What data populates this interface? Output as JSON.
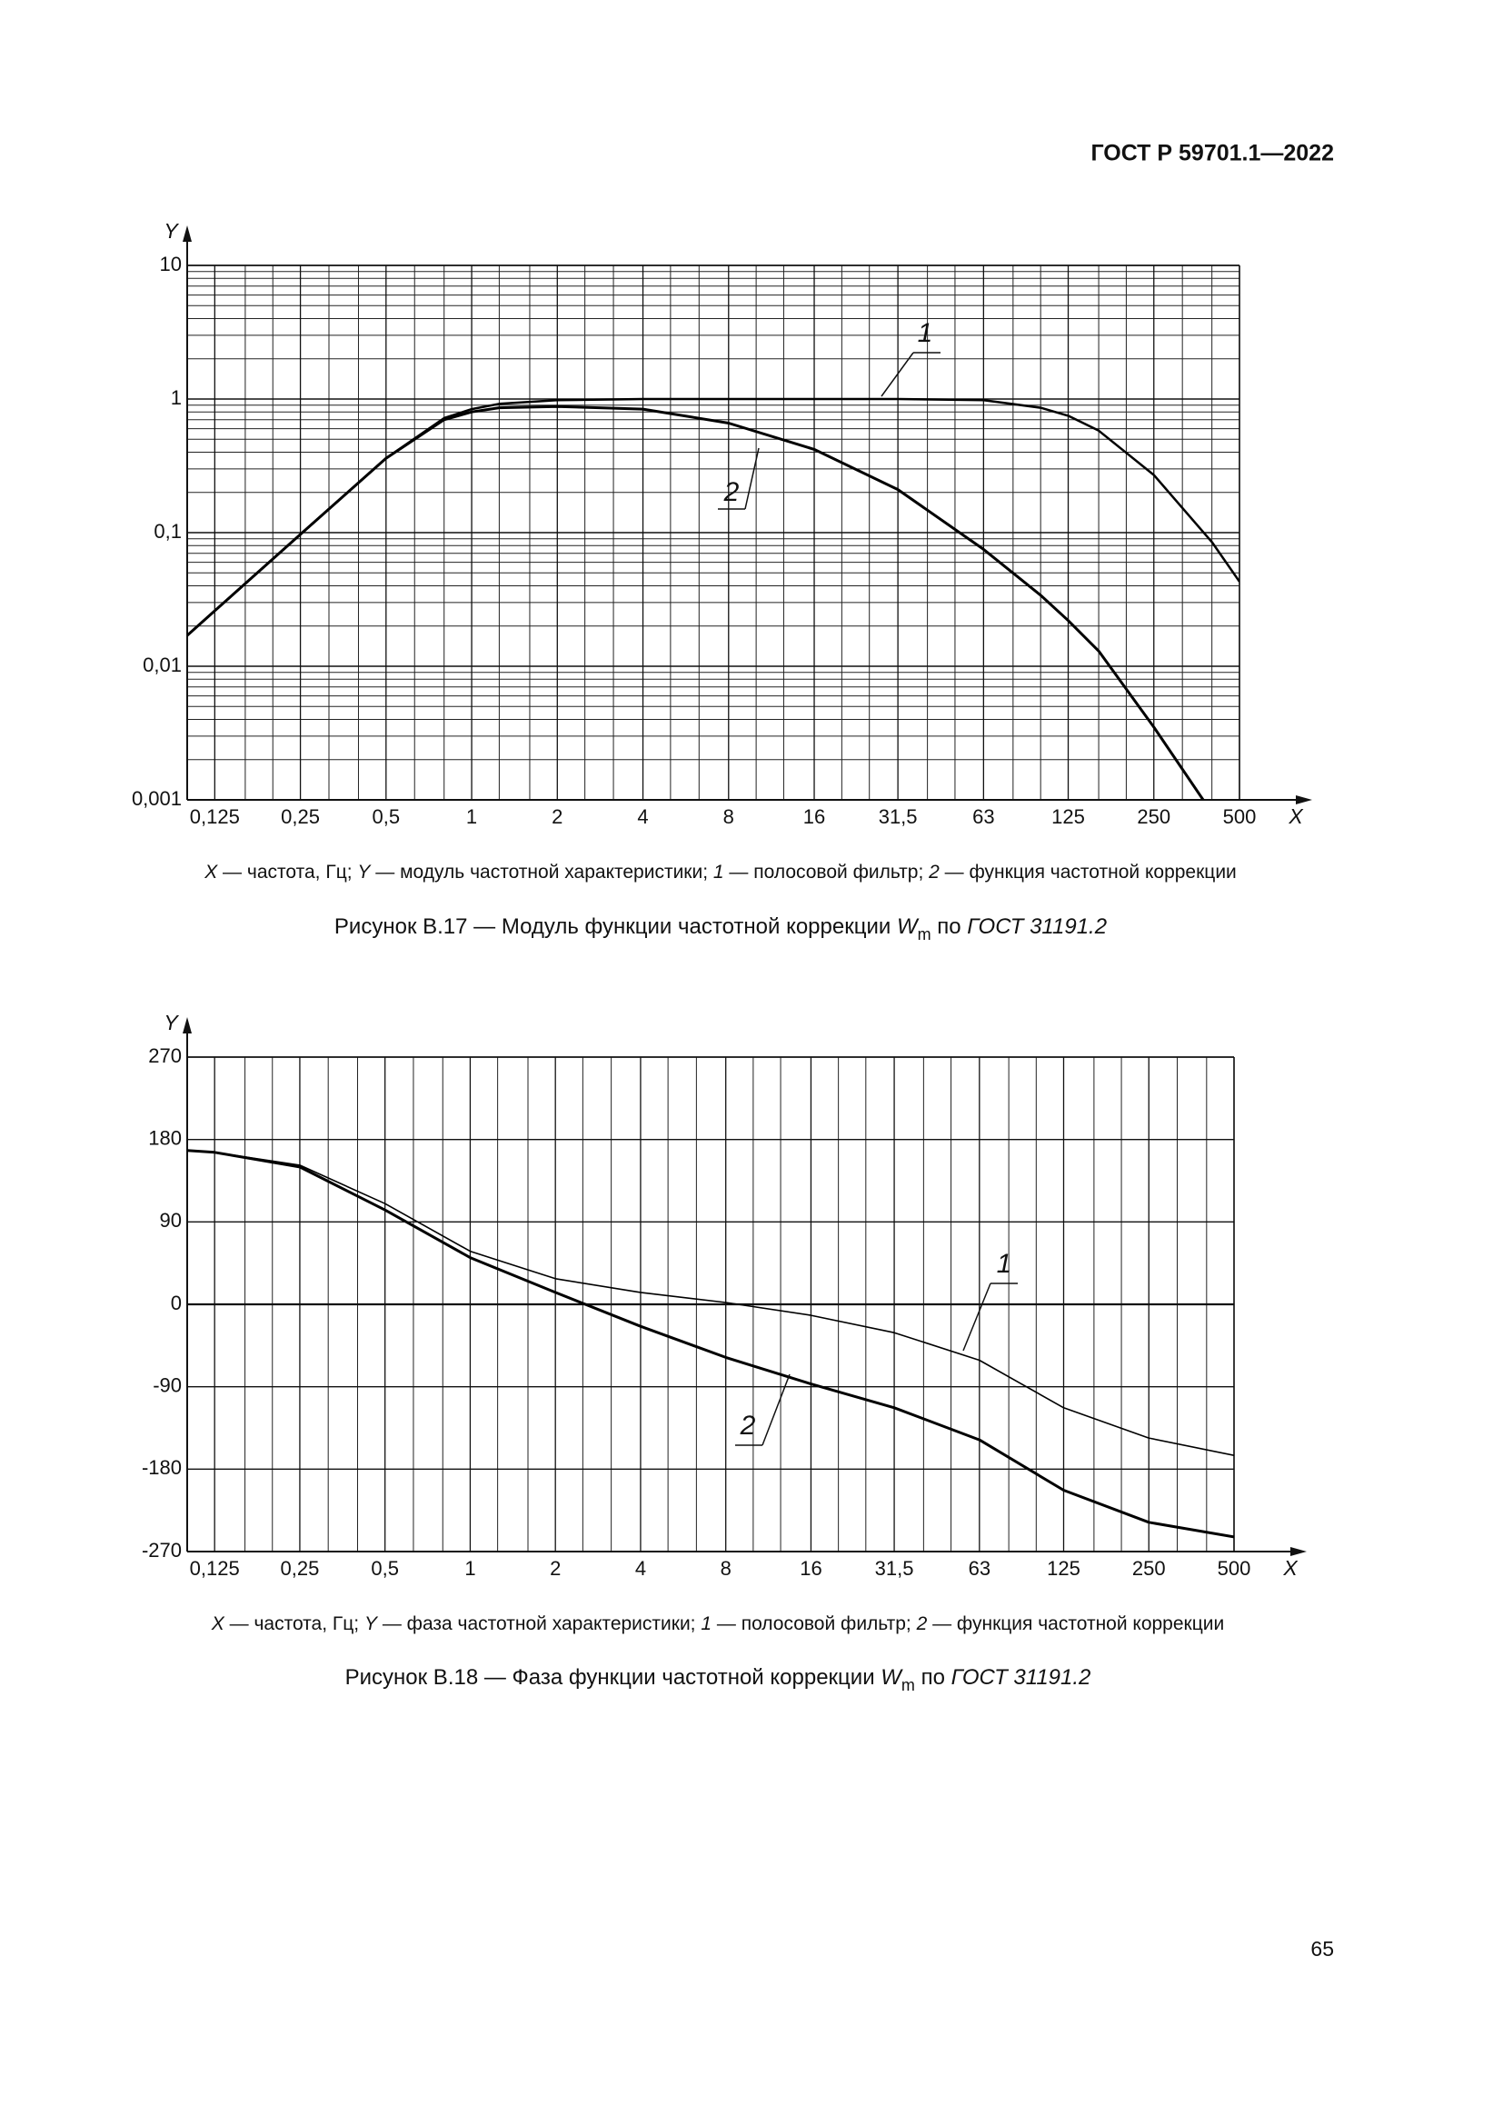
{
  "header": "ГОСТ Р 59701.1—2022",
  "page_number": "65",
  "chart_data": [
    {
      "type": "line",
      "xlabel": "X",
      "ylabel": "Y",
      "xscale": "log",
      "yscale": "log",
      "xlim": [
        0.1,
        500
      ],
      "ylim": [
        0.001,
        10
      ],
      "xticks": [
        {
          "value": 0.125,
          "label": "0,125"
        },
        {
          "value": 0.25,
          "label": "0,25"
        },
        {
          "value": 0.5,
          "label": "0,5"
        },
        1,
        2,
        4,
        8,
        16,
        {
          "value": 31.5,
          "label": "31,5"
        },
        63,
        125,
        250,
        500
      ],
      "xminor": [
        0.16,
        0.2,
        0.315,
        0.4,
        0.63,
        0.8,
        1.25,
        1.6,
        2.5,
        3.15,
        5,
        6.3,
        10,
        12.5,
        20,
        25,
        40,
        50,
        80,
        100,
        160,
        200,
        315,
        400
      ],
      "yticks": [
        {
          "value": 0.001,
          "label": "0,001"
        },
        {
          "value": 0.01,
          "label": "0,01"
        },
        {
          "value": 0.1,
          "label": "0,1"
        },
        1,
        10
      ],
      "yminor": [
        0.002,
        0.003,
        0.004,
        0.005,
        0.006,
        0.007,
        0.008,
        0.009,
        0.02,
        0.03,
        0.04,
        0.05,
        0.06,
        0.07,
        0.08,
        0.09,
        0.2,
        0.3,
        0.4,
        0.5,
        0.6,
        0.7,
        0.8,
        0.9,
        2,
        3,
        4,
        5,
        6,
        7,
        8,
        9
      ],
      "grid": true,
      "x": [
        0.1,
        0.125,
        0.25,
        0.5,
        0.8,
        1,
        1.25,
        2,
        4,
        8,
        16,
        31.5,
        63,
        100,
        125,
        160,
        250,
        400,
        500
      ],
      "series": [
        {
          "name": "1",
          "color": "#000000",
          "width": 2.5,
          "values": [
            0.017,
            0.026,
            0.097,
            0.36,
            0.72,
            0.84,
            0.92,
            0.98,
            1.0,
            1.0,
            1.0,
            1.0,
            0.98,
            0.86,
            0.75,
            0.58,
            0.27,
            0.085,
            0.043
          ]
        },
        {
          "name": "2",
          "color": "#000000",
          "width": 3,
          "values": [
            0.017,
            0.026,
            0.097,
            0.36,
            0.7,
            0.8,
            0.86,
            0.88,
            0.84,
            0.66,
            0.42,
            0.21,
            0.075,
            0.034,
            0.022,
            0.013,
            0.0035,
            0.0008,
            null
          ]
        }
      ],
      "note": [
        {
          "text": "X",
          "italic": true
        },
        {
          "text": " — частота, Гц; "
        },
        {
          "text": "Y",
          "italic": true
        },
        {
          "text": " — модуль частотной характеристики; "
        },
        {
          "text": "1",
          "italic": true
        },
        {
          "text": " — полосовой фильтр; "
        },
        {
          "text": "2",
          "italic": true
        },
        {
          "text": " — функция частотной коррекции"
        }
      ],
      "caption": [
        {
          "text": "Рисунок В.17 — Модуль функции частотной коррекции "
        },
        {
          "text": "W",
          "italic": true
        },
        {
          "text": "m",
          "subscript": true
        },
        {
          "text": " по "
        },
        {
          "text": "ГОСТ 31191.2",
          "italic": true
        }
      ]
    },
    {
      "type": "line",
      "xlabel": "X",
      "ylabel": "Y",
      "xscale": "log",
      "yscale": "linear",
      "xlim": [
        0.1,
        500
      ],
      "ylim": [
        -270,
        270
      ],
      "xticks": [
        {
          "value": 0.125,
          "label": "0,125"
        },
        {
          "value": 0.25,
          "label": "0,25"
        },
        {
          "value": 0.5,
          "label": "0,5"
        },
        1,
        2,
        4,
        8,
        16,
        {
          "value": 31.5,
          "label": "31,5"
        },
        63,
        125,
        250,
        500
      ],
      "xminor": [
        0.16,
        0.2,
        0.315,
        0.4,
        0.63,
        0.8,
        1.25,
        1.6,
        2.5,
        3.15,
        5,
        6.3,
        10,
        12.5,
        20,
        25,
        40,
        50,
        80,
        100,
        160,
        200,
        315,
        400
      ],
      "yticks": [
        -270,
        -180,
        -90,
        0,
        90,
        180,
        270
      ],
      "grid": true,
      "x": [
        0.1,
        0.125,
        0.25,
        0.5,
        1,
        2,
        4,
        8,
        16,
        31.5,
        63,
        125,
        250,
        500
      ],
      "series": [
        {
          "name": "1",
          "color": "#000000",
          "width": 1.6,
          "values": [
            168,
            166,
            152,
            110,
            58,
            28,
            13,
            2,
            -12,
            -31,
            -61,
            -113,
            -146,
            -165
          ]
        },
        {
          "name": "2",
          "color": "#000000",
          "width": 3,
          "values": [
            168,
            166,
            150,
            103,
            51,
            13,
            -24,
            -58,
            -87,
            -113,
            -148,
            -203,
            -238,
            -254
          ]
        }
      ],
      "note": [
        {
          "text": "X",
          "italic": true
        },
        {
          "text": " — частота, Гц; "
        },
        {
          "text": "Y",
          "italic": true
        },
        {
          "text": " — фаза частотной характеристики; "
        },
        {
          "text": "1",
          "italic": true
        },
        {
          "text": " — полосовой фильтр; "
        },
        {
          "text": "2",
          "italic": true
        },
        {
          "text": " — функция частотной коррекции"
        }
      ],
      "caption": [
        {
          "text": "Рисунок В.18 — Фаза функции частотной коррекции "
        },
        {
          "text": "W",
          "italic": true
        },
        {
          "text": "m",
          "subscript": true
        },
        {
          "text": " по "
        },
        {
          "text": "ГОСТ 31191.2",
          "italic": true
        }
      ]
    }
  ]
}
